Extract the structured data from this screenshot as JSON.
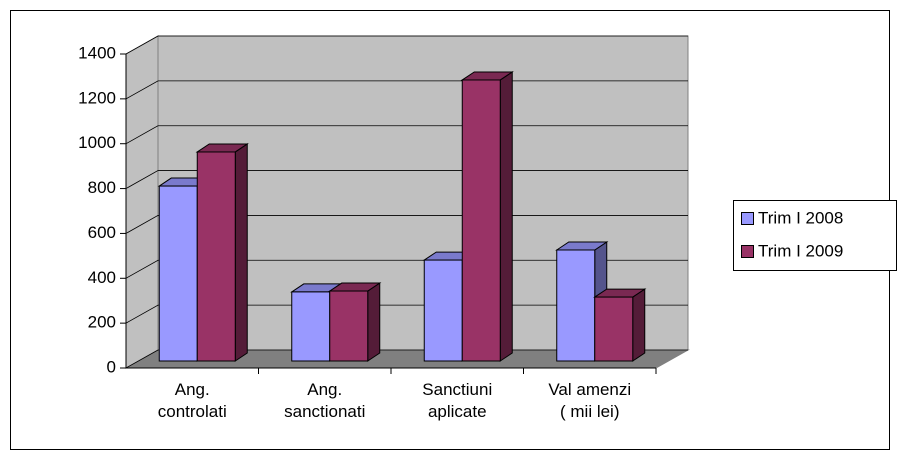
{
  "chart_data": {
    "type": "bar3d",
    "categories": [
      "Ang.\ncontrolati",
      "Ang.\nsanctionati",
      "Sanctiuni\naplicate",
      "Val amenzi\n( mii lei)"
    ],
    "series": [
      {
        "name": "Trim I 2008",
        "color": "#9999ff",
        "values": [
          780,
          308,
          450,
          495
        ]
      },
      {
        "name": "Trim I 2009",
        "color": "#993366",
        "values": [
          932,
          312,
          1253,
          285
        ]
      }
    ],
    "ylim": [
      0,
      1400
    ],
    "yticks": [
      0,
      200,
      400,
      600,
      800,
      1000,
      1200,
      1400
    ],
    "grid": true,
    "legend": "right"
  }
}
